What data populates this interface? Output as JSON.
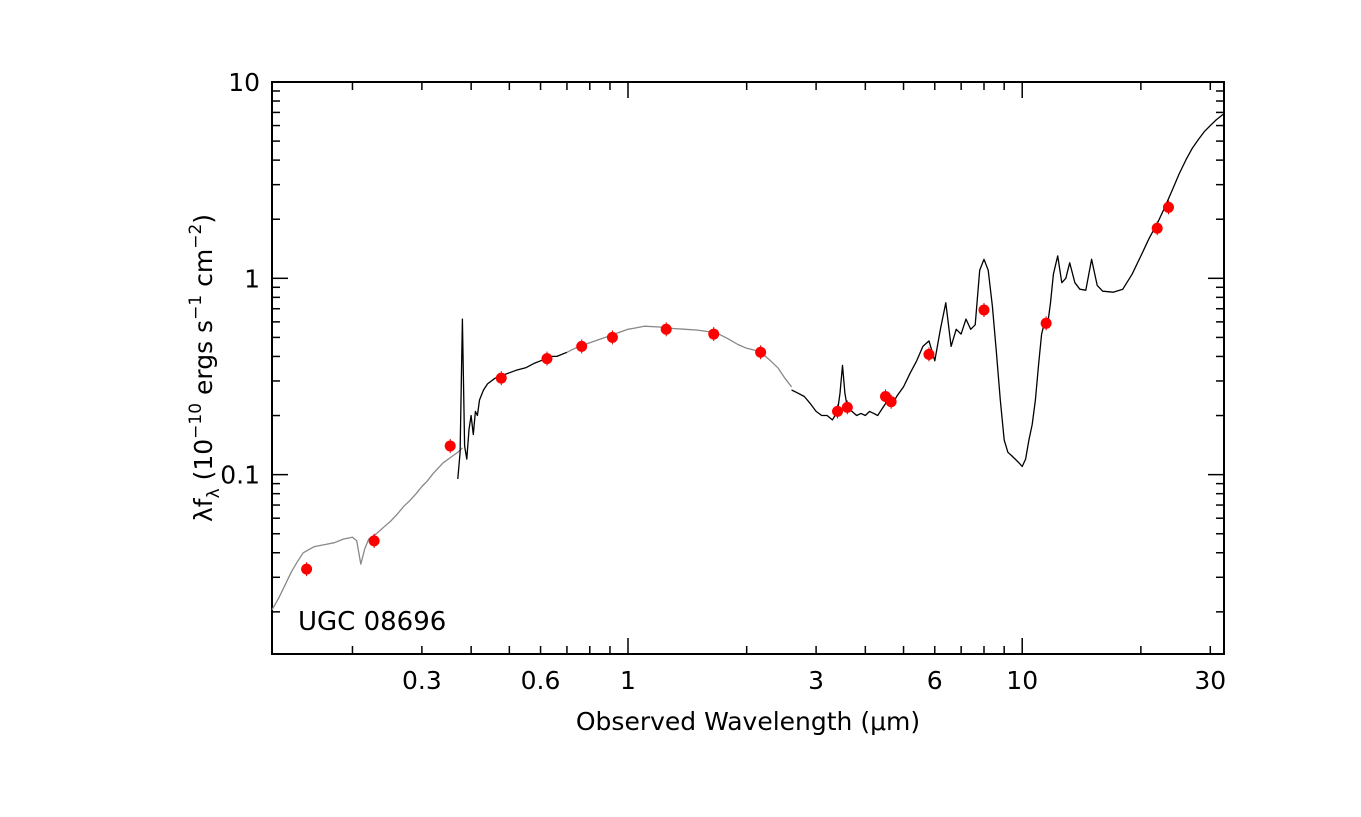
{
  "chart_data": {
    "type": "scatter",
    "annotation": "UGC 08696",
    "xlabel": "Observed Wavelength (μm)",
    "ylabel": {
      "base": "λf",
      "base_sub": "λ",
      "open": " (10",
      "exp1": "−10",
      "mid": " ergs s",
      "exp2": "−1",
      "mid2": " cm",
      "exp3": "−2",
      "close": ")"
    },
    "x_scale": "log",
    "y_scale": "log",
    "xlim": [
      0.125,
      32.5
    ],
    "ylim": [
      0.0122,
      10.0
    ],
    "x_ticks": [
      {
        "value": 0.3,
        "label": "0.3"
      },
      {
        "value": 0.6,
        "label": "0.6"
      },
      {
        "value": 1,
        "label": "1"
      },
      {
        "value": 3,
        "label": "3"
      },
      {
        "value": 6,
        "label": "6"
      },
      {
        "value": 10,
        "label": "10"
      },
      {
        "value": 30,
        "label": "30"
      }
    ],
    "y_ticks": [
      {
        "value": 0.1,
        "label": "0.1"
      },
      {
        "value": 1,
        "label": "1"
      },
      {
        "value": 10,
        "label": "10"
      }
    ],
    "grid": false,
    "series": [
      {
        "style": "gray-line",
        "color": "#888888",
        "x": [
          0.125,
          0.13,
          0.135,
          0.14,
          0.145,
          0.15,
          0.16,
          0.17,
          0.18,
          0.19,
          0.2,
          0.205,
          0.21,
          0.215,
          0.22,
          0.23,
          0.24,
          0.25,
          0.26,
          0.27,
          0.28,
          0.29,
          0.3,
          0.31,
          0.32,
          0.33,
          0.34,
          0.35,
          0.36,
          0.37,
          0.38
        ],
        "y": [
          0.0205,
          0.0235,
          0.0275,
          0.032,
          0.036,
          0.04,
          0.043,
          0.044,
          0.045,
          0.047,
          0.048,
          0.046,
          0.035,
          0.042,
          0.047,
          0.05,
          0.054,
          0.058,
          0.063,
          0.069,
          0.074,
          0.08,
          0.087,
          0.093,
          0.101,
          0.108,
          0.115,
          0.12,
          0.125,
          0.13,
          0.137
        ]
      },
      {
        "style": "black-line",
        "color": "#000000",
        "x": [
          0.37,
          0.375,
          0.38,
          0.385,
          0.39,
          0.395,
          0.4,
          0.405,
          0.41,
          0.415,
          0.42,
          0.43,
          0.44,
          0.45,
          0.46,
          0.48,
          0.5,
          0.52,
          0.55,
          0.58,
          0.6,
          0.62,
          0.64,
          0.66,
          0.7
        ],
        "y": [
          0.095,
          0.13,
          0.62,
          0.14,
          0.12,
          0.17,
          0.2,
          0.16,
          0.21,
          0.2,
          0.24,
          0.27,
          0.29,
          0.3,
          0.31,
          0.32,
          0.33,
          0.34,
          0.35,
          0.37,
          0.38,
          0.39,
          0.4,
          0.4,
          0.42
        ]
      },
      {
        "style": "gray-line",
        "color": "#888888",
        "x": [
          0.7,
          0.75,
          0.8,
          0.85,
          0.9,
          0.95,
          1.0,
          1.05,
          1.1,
          1.2,
          1.3,
          1.4,
          1.5,
          1.6,
          1.7,
          1.8,
          1.9,
          2.0,
          2.1,
          2.2,
          2.3,
          2.4,
          2.5,
          2.6
        ],
        "y": [
          0.42,
          0.45,
          0.47,
          0.49,
          0.51,
          0.53,
          0.55,
          0.56,
          0.57,
          0.565,
          0.555,
          0.55,
          0.545,
          0.535,
          0.52,
          0.49,
          0.46,
          0.44,
          0.43,
          0.41,
          0.38,
          0.35,
          0.31,
          0.28
        ]
      },
      {
        "style": "black-line",
        "color": "#000000",
        "x": [
          2.6,
          2.7,
          2.8,
          2.9,
          3.0,
          3.1,
          3.2,
          3.3,
          3.4,
          3.45,
          3.5,
          3.55,
          3.6,
          3.7,
          3.8,
          3.9,
          4.0,
          4.1,
          4.2,
          4.3,
          4.4,
          4.5,
          4.6,
          4.7,
          4.8,
          5.0,
          5.2,
          5.4,
          5.6,
          5.8,
          6.0,
          6.2,
          6.4,
          6.6,
          6.8,
          7.0,
          7.2,
          7.4,
          7.6,
          7.8,
          8.0,
          8.2,
          8.4,
          8.6,
          8.8,
          9.0,
          9.2,
          9.4,
          9.6,
          9.8,
          10.0,
          10.2,
          10.4,
          10.6,
          10.8,
          11.0,
          11.2,
          11.4,
          11.6,
          11.8,
          12.0,
          12.3,
          12.6,
          12.9,
          13.2,
          13.6,
          14.0,
          14.5,
          15.0,
          15.5,
          16.0,
          17.0,
          18.0,
          19.0,
          20.0,
          21.0,
          22.0,
          23.0,
          24.0,
          25.0,
          26.0,
          27.0,
          28.0,
          29.0,
          30.0,
          31.0,
          32.5
        ],
        "y": [
          0.27,
          0.26,
          0.25,
          0.23,
          0.21,
          0.2,
          0.2,
          0.19,
          0.21,
          0.26,
          0.36,
          0.26,
          0.22,
          0.21,
          0.2,
          0.205,
          0.2,
          0.21,
          0.205,
          0.2,
          0.215,
          0.23,
          0.24,
          0.23,
          0.25,
          0.28,
          0.33,
          0.38,
          0.45,
          0.48,
          0.38,
          0.55,
          0.75,
          0.45,
          0.55,
          0.52,
          0.62,
          0.55,
          0.58,
          1.1,
          1.25,
          1.1,
          0.72,
          0.42,
          0.24,
          0.15,
          0.13,
          0.125,
          0.12,
          0.115,
          0.11,
          0.12,
          0.15,
          0.18,
          0.24,
          0.36,
          0.52,
          0.6,
          0.58,
          0.75,
          1.05,
          1.3,
          0.95,
          1.0,
          1.2,
          0.95,
          0.88,
          0.87,
          1.25,
          0.92,
          0.86,
          0.85,
          0.88,
          1.05,
          1.3,
          1.6,
          1.9,
          2.3,
          2.8,
          3.4,
          4.0,
          4.6,
          5.1,
          5.6,
          6.0,
          6.4,
          6.9
        ]
      },
      {
        "style": "red-points",
        "color": "#ff0000",
        "x": [
          0.153,
          0.227,
          0.354,
          0.477,
          0.623,
          0.763,
          0.913,
          1.25,
          1.65,
          2.17,
          3.4,
          3.6,
          4.5,
          4.65,
          5.8,
          8.0,
          11.5,
          22.0,
          23.5
        ],
        "y": [
          0.033,
          0.046,
          0.14,
          0.31,
          0.39,
          0.45,
          0.5,
          0.55,
          0.52,
          0.42,
          0.21,
          0.22,
          0.25,
          0.235,
          0.41,
          0.69,
          0.59,
          1.8,
          2.3
        ]
      }
    ]
  }
}
